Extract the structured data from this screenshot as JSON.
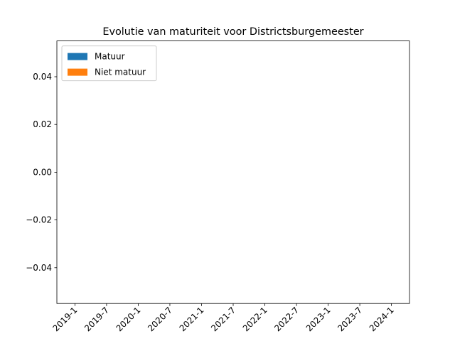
{
  "chart_data": {
    "type": "bar",
    "stacked": true,
    "title": "Evolutie van maturiteit voor Districtsburgemeester",
    "categories": [
      "2019-1",
      "2019-7",
      "2020-1",
      "2020-7",
      "2021-1",
      "2021-7",
      "2022-1",
      "2022-7",
      "2023-1",
      "2023-7",
      "2024-1"
    ],
    "series": [
      {
        "name": "Matuur",
        "color": "#1f77b4",
        "values": [
          0,
          0,
          0,
          0,
          0,
          0,
          0,
          0,
          0,
          0,
          0
        ]
      },
      {
        "name": "Niet matuur",
        "color": "#ff7f0e",
        "values": [
          0,
          0,
          0,
          0,
          0,
          0,
          0,
          0,
          0,
          0,
          0
        ]
      }
    ],
    "ylim": [
      -0.055,
      0.055
    ],
    "yticks": [
      {
        "value": -0.04,
        "label": "−0.04"
      },
      {
        "value": -0.02,
        "label": "−0.02"
      },
      {
        "value": 0,
        "label": "0.00"
      },
      0.02,
      0.04
    ],
    "legend": "upper left"
  }
}
